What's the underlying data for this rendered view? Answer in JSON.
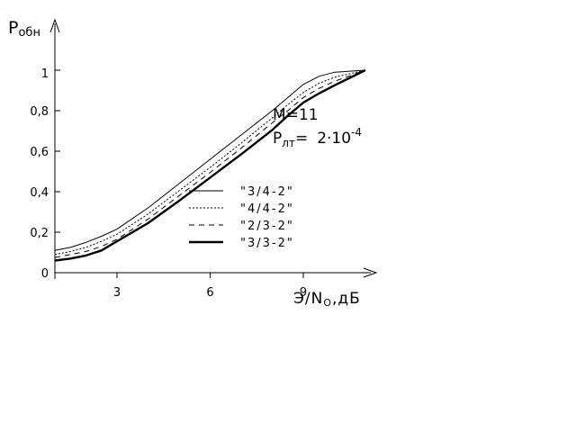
{
  "chart_data": {
    "type": "line",
    "ylabel": "P",
    "ylabel_sub": "обн",
    "xlabel_main": "Э/N",
    "xlabel_sub": "O",
    "xlabel_unit": ",дБ",
    "xlim": [
      1,
      11
    ],
    "ylim": [
      0,
      1
    ],
    "x_ticks": [
      {
        "value": 3,
        "label": "3"
      },
      {
        "value": 6,
        "label": "6"
      },
      {
        "value": 9,
        "label": "9"
      }
    ],
    "y_ticks": [
      {
        "value": 0,
        "label": "0"
      },
      {
        "value": 0.2,
        "label": "0,2"
      },
      {
        "value": 0.4,
        "label": "0,4"
      },
      {
        "value": 0.6,
        "label": "0,6"
      },
      {
        "value": 0.8,
        "label": "0,8"
      },
      {
        "value": 1,
        "label": "1"
      }
    ],
    "annotation": {
      "line1": "M=11",
      "line2_main": "P",
      "line2_sub": "лт",
      "line2_eq": "=",
      "line2_value": "2·10",
      "line2_exp": "-4"
    },
    "legend_position": "center-right",
    "series": [
      {
        "name": "\"3/4-2\"",
        "style": "solid-thin",
        "x": [
          1.0,
          1.5,
          2.0,
          2.5,
          3.0,
          4.0,
          5.0,
          6.0,
          7.0,
          8.0,
          8.5,
          9.0,
          9.5,
          10.0,
          11.0
        ],
        "y": [
          0.11,
          0.125,
          0.15,
          0.18,
          0.215,
          0.32,
          0.44,
          0.56,
          0.68,
          0.8,
          0.865,
          0.93,
          0.97,
          0.99,
          1.0
        ]
      },
      {
        "name": "\"4/4-2\"",
        "style": "dotted",
        "x": [
          1.0,
          1.5,
          2.0,
          2.5,
          3.0,
          4.0,
          5.0,
          6.0,
          7.0,
          8.0,
          8.5,
          9.0,
          9.5,
          10.0,
          11.0
        ],
        "y": [
          0.09,
          0.105,
          0.125,
          0.155,
          0.19,
          0.29,
          0.405,
          0.52,
          0.64,
          0.765,
          0.83,
          0.89,
          0.935,
          0.965,
          1.0
        ]
      },
      {
        "name": "\"2/3-2\"",
        "style": "dashed",
        "x": [
          1.0,
          1.5,
          2.0,
          2.5,
          3.0,
          4.0,
          5.0,
          6.0,
          7.0,
          8.0,
          8.5,
          9.0,
          9.5,
          10.0,
          11.0
        ],
        "y": [
          0.075,
          0.09,
          0.105,
          0.13,
          0.165,
          0.265,
          0.38,
          0.495,
          0.615,
          0.74,
          0.8,
          0.865,
          0.91,
          0.945,
          1.0
        ]
      },
      {
        "name": "\"3/3-2\"",
        "style": "solid-thick",
        "x": [
          1.0,
          1.5,
          2.0,
          2.5,
          3.0,
          4.0,
          5.0,
          6.0,
          7.0,
          8.0,
          8.5,
          9.0,
          9.5,
          10.0,
          11.0
        ],
        "y": [
          0.06,
          0.07,
          0.085,
          0.11,
          0.155,
          0.245,
          0.355,
          0.47,
          0.585,
          0.705,
          0.775,
          0.84,
          0.885,
          0.925,
          1.0
        ]
      }
    ]
  }
}
